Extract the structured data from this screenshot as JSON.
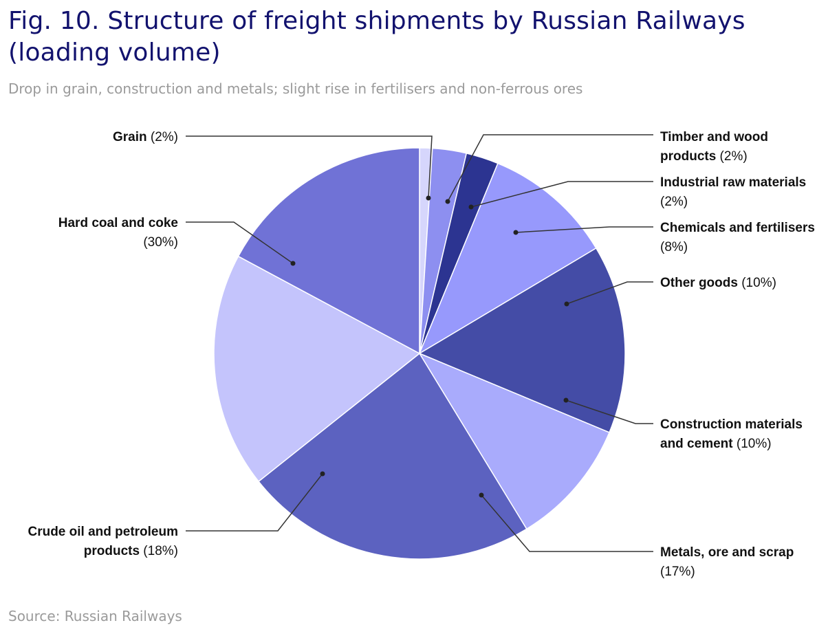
{
  "title": "Fig. 10. Structure of freight shipments by Russian Railways (loading volume)",
  "subtitle": "Drop in grain, construction and metals; slight rise in fertilisers and non-ferrous ores",
  "source": "Source: Russian Railways",
  "chart_data": {
    "type": "pie",
    "slices": [
      {
        "name": "Grain",
        "value": 2,
        "label": "(2%)",
        "color": "#d6d6fc",
        "label_lines": [
          {
            "bold": "Grain",
            "text": " (2%)"
          }
        ]
      },
      {
        "name": "Timber and wood products",
        "value": 2,
        "label": "(2%)",
        "color": "#8d8ff0",
        "label_lines": [
          {
            "bold": "Timber and wood",
            "text": ""
          },
          {
            "bold": "products",
            "text": " (2%)"
          }
        ]
      },
      {
        "name": "Industrial raw materials",
        "value": 2,
        "label": "(2%)",
        "color": "#2c3491",
        "label_lines": [
          {
            "bold": "Industrial raw materials",
            "text": ""
          },
          {
            "bold": "",
            "text": "(2%)"
          }
        ]
      },
      {
        "name": "Chemicals and fertilisers",
        "value": 8,
        "label": "(8%)",
        "color": "#9799fc",
        "label_lines": [
          {
            "bold": "Chemicals and fertilisers",
            "text": ""
          },
          {
            "bold": "",
            "text": "(8%)"
          }
        ]
      },
      {
        "name": "Other goods",
        "value": 10,
        "label": "(10%)",
        "color": "#444ca6",
        "label_lines": [
          {
            "bold": "Other goods",
            "text": " (10%)"
          }
        ]
      },
      {
        "name": "Construction materials and cement",
        "value": 10,
        "label": "(10%)",
        "color": "#a9abfc",
        "label_lines": [
          {
            "bold": "Construction materials",
            "text": ""
          },
          {
            "bold": "and cement",
            "text": " (10%)"
          }
        ]
      },
      {
        "name": "Metals, ore and scrap",
        "value": 17,
        "label": "(17%)",
        "color": "#5c62c0",
        "label_lines": [
          {
            "bold": "Metals, ore and scrap",
            "text": ""
          },
          {
            "bold": "",
            "text": "(17%)"
          }
        ]
      },
      {
        "name": "Crude oil and petroleum products",
        "value": 18,
        "label": "(18%)",
        "color": "#c4c4fc",
        "label_lines": [
          {
            "bold": "Crude oil and petroleum",
            "text": ""
          },
          {
            "bold": "products",
            "text": " (18%)"
          }
        ]
      },
      {
        "name": "Hard coal and coke",
        "value": 30,
        "label": "(30%)",
        "color": "#7072d6",
        "label_lines": [
          {
            "bold": "Hard coal and coke",
            "text": ""
          },
          {
            "bold": "",
            "text": "(30%)"
          }
        ]
      }
    ],
    "start_angle": "12 o'clock",
    "direction": "clockwise",
    "legend": "none (callout labels)"
  }
}
